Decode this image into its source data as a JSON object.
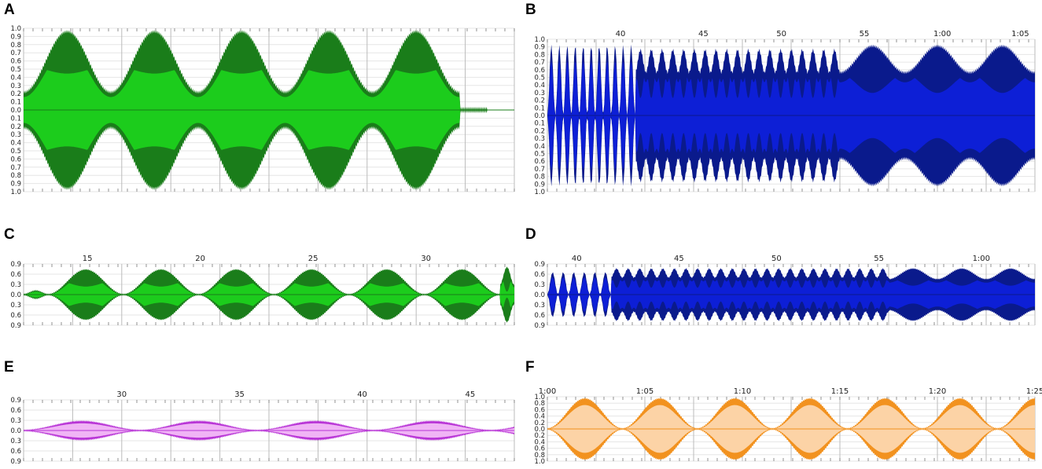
{
  "chart_data": [
    {
      "panel": "A",
      "type": "area",
      "title": "",
      "xlabel": "",
      "ylabel": "",
      "y_ticks": [
        "1.0",
        "0.9",
        "0.8",
        "0.7",
        "0.6",
        "0.5",
        "0.4",
        "0.3",
        "0.2",
        "0.1",
        "0.0",
        "0.1",
        "0.2",
        "0.3",
        "0.4",
        "0.5",
        "0.6",
        "0.7",
        "0.8",
        "0.9",
        "1.0"
      ],
      "x_ticks": [],
      "ylim": [
        -1.0,
        1.0
      ],
      "outer_color": "#1a7d1a",
      "inner_color": "#1ccc1c",
      "envelope": {
        "segments": [
          [
            0,
            0.94,
            0,
            0.2,
            0.95,
            0.55,
            0.45,
            5,
            0.03,
            0.05
          ],
          [
            0.49,
            0.57,
            0,
            0.25,
            0.6,
            0.3,
            0.15,
            2.5,
            0.1,
            0.1
          ],
          [
            0.57,
            0.94,
            0.08,
            0.2,
            0.95,
            0.55,
            0.45,
            2,
            0.03,
            0.05
          ]
        ],
        "tail": 0.94,
        "tail_amp": 0.0
      }
    },
    {
      "panel": "B",
      "type": "area",
      "title": "",
      "xlabel": "",
      "ylabel": "",
      "y_ticks": [
        "1.0",
        "0.9",
        "0.8",
        "0.7",
        "0.6",
        "0.5",
        "0.4",
        "0.3",
        "0.2",
        "0.1",
        "0.0",
        "0.1",
        "0.2",
        "0.3",
        "0.4",
        "0.5",
        "0.6",
        "0.7",
        "0.8",
        "0.9",
        "1.0"
      ],
      "x_ticks": [
        "40",
        "45",
        "50",
        "55",
        "1:00",
        "1:05"
      ],
      "ylim": [
        -1.0,
        1.0
      ],
      "outer_color": "#0a1a8c",
      "inner_color": "#0d1fd6",
      "envelope": {
        "segments": [
          [
            0,
            0.18,
            0,
            0.0,
            0.9,
            0.0,
            0.9,
            11,
            0.0,
            0.9
          ],
          [
            0.18,
            0.6,
            0,
            0.55,
            0.85,
            0.62,
            0.23,
            19,
            0.0,
            0.85
          ],
          [
            0.6,
            1.0,
            0,
            0.55,
            0.9,
            0.55,
            0.3,
            3,
            0.0,
            0.9
          ]
        ],
        "tail": 1.0,
        "tail_amp": 0.0
      }
    },
    {
      "panel": "C",
      "type": "area",
      "title": "",
      "xlabel": "",
      "ylabel": "",
      "y_ticks": [
        "0.9",
        "0.6",
        "0.3",
        "0.0",
        "0.3",
        "0.6",
        "0.9"
      ],
      "x_ticks": [
        "15",
        "20",
        "25",
        "30"
      ],
      "ylim": [
        -1.0,
        1.0
      ],
      "outer_color": "#1a7d1a",
      "inner_color": "#1ccc1c",
      "envelope": {
        "segments": [
          [
            0,
            0.05,
            0,
            0.0,
            0.12,
            0.0,
            0.12,
            1,
            0.0,
            0.0
          ],
          [
            0.05,
            0.97,
            0,
            0.0,
            0.82,
            0.55,
            0.27,
            6,
            0.0,
            0.82
          ],
          [
            0.97,
            1.0,
            0,
            0.3,
            0.9,
            0.8,
            0.1,
            1,
            0.0,
            0.0
          ]
        ],
        "tail": 1.0,
        "tail_amp": 0.0
      }
    },
    {
      "panel": "D",
      "type": "area",
      "title": "",
      "xlabel": "",
      "ylabel": "",
      "y_ticks": [
        "0.9",
        "0.6",
        "0.3",
        "0.0",
        "0.3",
        "0.6",
        "0.9"
      ],
      "x_ticks": [
        "40",
        "45",
        "50",
        "55",
        "1:00"
      ],
      "ylim": [
        -1.0,
        1.0
      ],
      "outer_color": "#0a1a8c",
      "inner_color": "#0d1fd6",
      "envelope": {
        "segments": [
          [
            0,
            0.13,
            0,
            0.0,
            0.72,
            0.0,
            0.72,
            6,
            0.0,
            0.72
          ],
          [
            0.13,
            0.7,
            0,
            0.55,
            0.85,
            0.62,
            0.23,
            24,
            0.0,
            0.85
          ],
          [
            0.7,
            1.0,
            0,
            0.5,
            0.85,
            0.55,
            0.3,
            3,
            0.0,
            0.85
          ]
        ],
        "tail": 1.0,
        "tail_amp": 0.0
      }
    },
    {
      "panel": "E",
      "type": "area",
      "title": "",
      "xlabel": "",
      "ylabel": "",
      "y_ticks": [
        "0.9",
        "0.6",
        "0.3",
        "0.0",
        "0.3",
        "0.6",
        "0.9"
      ],
      "x_ticks": [
        "30",
        "35",
        "40",
        "45"
      ],
      "ylim": [
        -1.0,
        1.0
      ],
      "outer_color": "#b833d6",
      "inner_color": "#f0b4f5",
      "envelope": {
        "segments": [
          [
            0,
            1.0,
            0,
            0.0,
            0.3,
            0.0,
            0.3,
            4.2,
            0.0,
            0.3
          ]
        ],
        "tail": 1.0,
        "tail_amp": 0.0
      }
    },
    {
      "panel": "F",
      "type": "area",
      "title": "",
      "xlabel": "",
      "ylabel": "",
      "y_ticks": [
        "1.0",
        "0.8",
        "0.6",
        "0.4",
        "0.2",
        "0.0",
        "0.2",
        "0.4",
        "0.6",
        "0.8",
        "1.0"
      ],
      "x_ticks": [
        "1:00",
        "1:05",
        "1:10",
        "1:15",
        "1:20",
        "1:25"
      ],
      "ylim": [
        -1.0,
        1.0
      ],
      "outer_color": "#f2921f",
      "inner_color": "#fcd3a6",
      "envelope": {
        "segments": [
          [
            0,
            1.0,
            0,
            0.0,
            0.95,
            0.0,
            0.95,
            6.5,
            0.0,
            0.95
          ]
        ],
        "tail": 1.0,
        "tail_amp": 0.0
      }
    }
  ]
}
